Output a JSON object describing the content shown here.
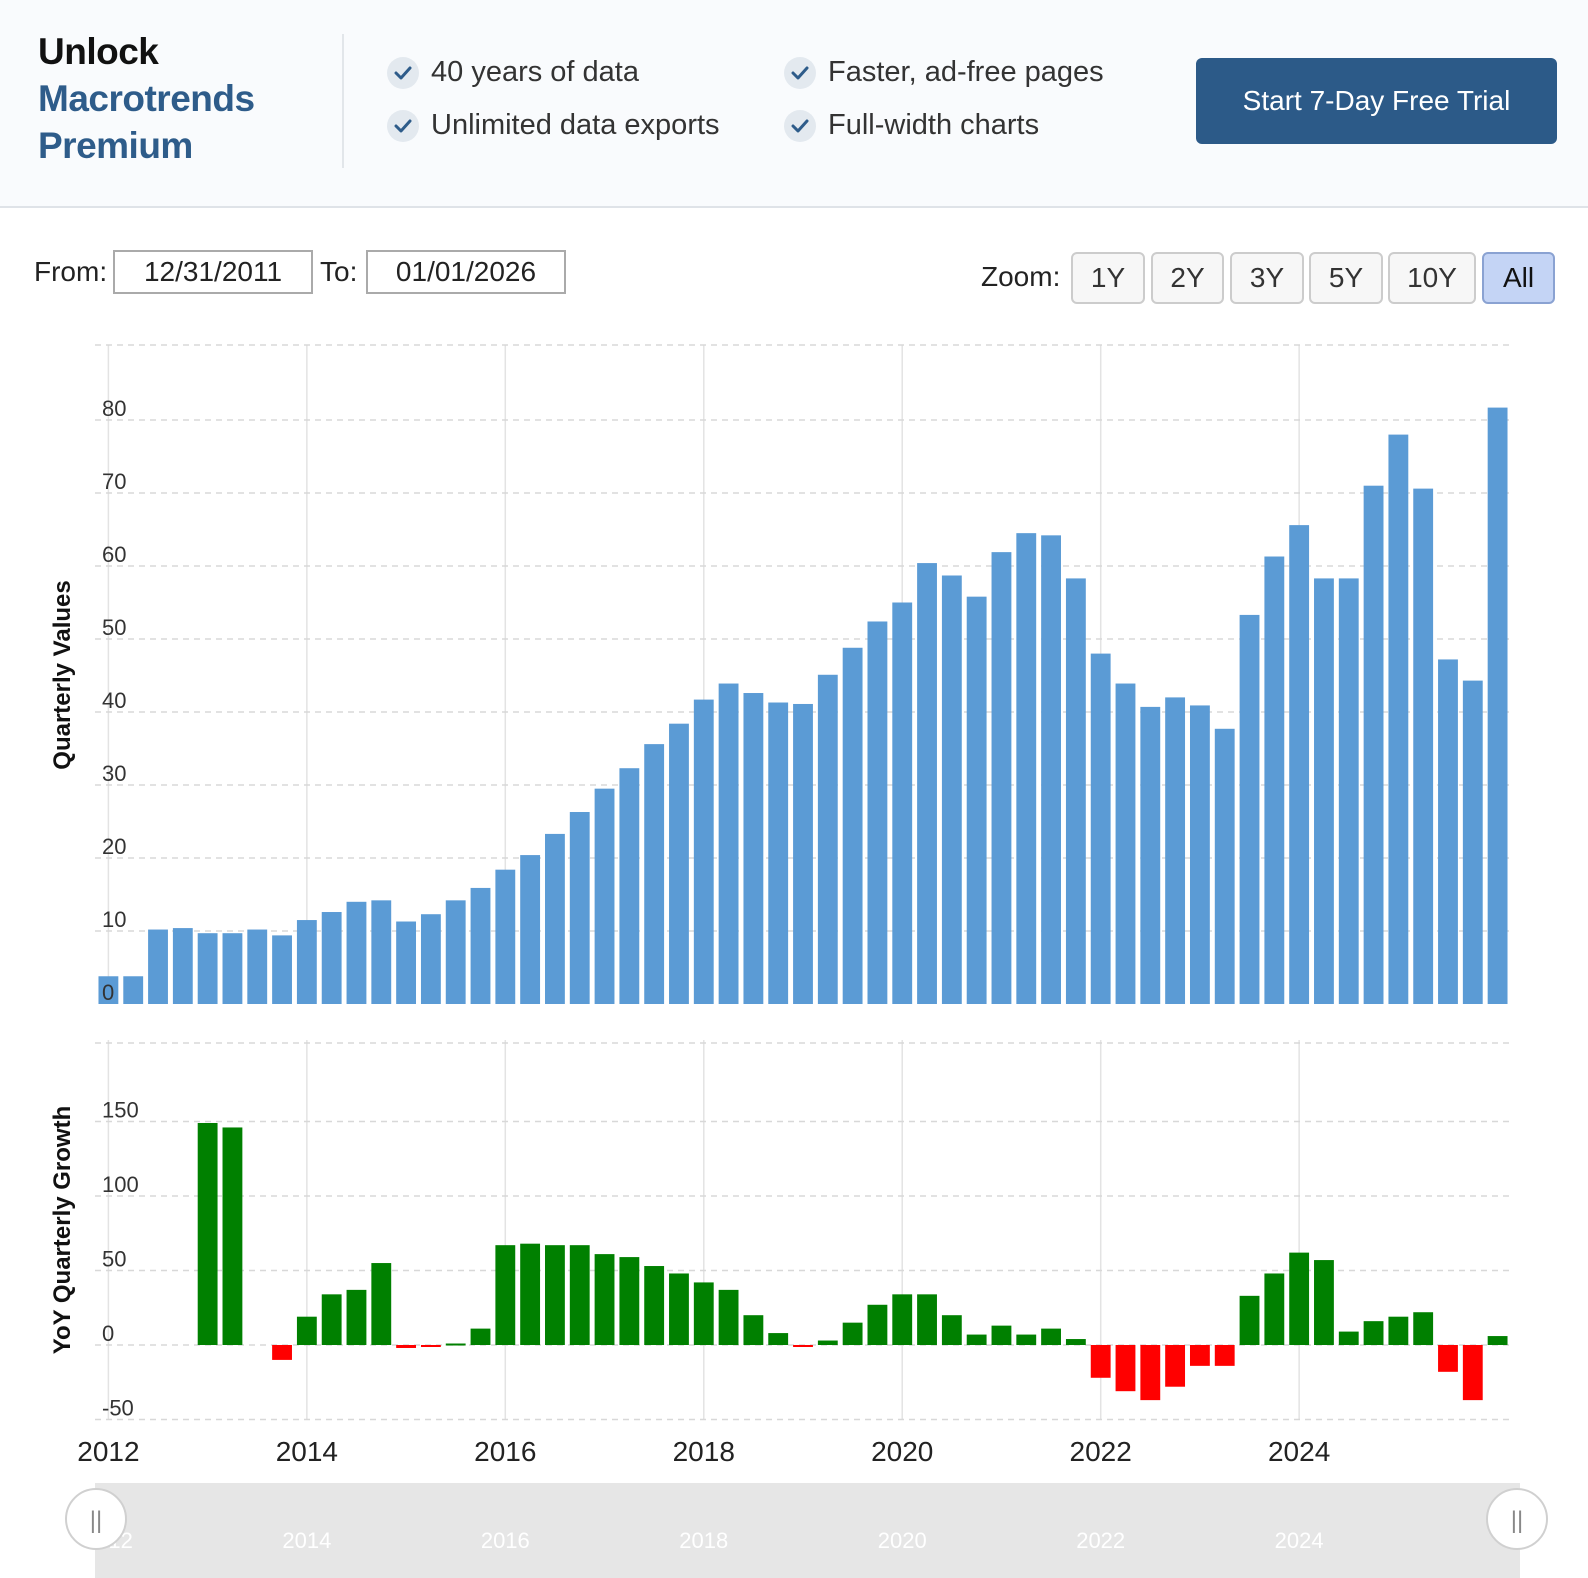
{
  "banner": {
    "title_line1": "Unlock",
    "title_line2": "Macrotrends",
    "title_line3": "Premium",
    "features": [
      "40 years of data",
      "Faster, ad-free pages",
      "Unlimited data exports",
      "Full-width charts"
    ],
    "cta_label": "Start 7-Day Free Trial",
    "check_icon": "check-icon"
  },
  "date_range": {
    "from_label": "From:",
    "from_value": "12/31/2011",
    "to_label": "To:",
    "to_value": "01/01/2026"
  },
  "zoom": {
    "label": "Zoom:",
    "options": [
      "1Y",
      "2Y",
      "3Y",
      "5Y",
      "10Y",
      "All"
    ],
    "selected": "All"
  },
  "colors": {
    "bar": "#5b9bd5",
    "positive": "#008000",
    "negative": "#ff0000",
    "accent": "#2c5a88"
  },
  "chart_data": [
    {
      "type": "bar",
      "ylabel": "Quarterly Values",
      "ylim": [
        0,
        90
      ],
      "yticks": [
        0,
        10,
        20,
        30,
        40,
        50,
        60,
        70,
        80
      ],
      "grid": true,
      "x_start": "2012-Q1",
      "x": [
        "2012-Q1",
        "2012-Q2",
        "2012-Q3",
        "2012-Q4",
        "2013-Q1",
        "2013-Q2",
        "2013-Q3",
        "2013-Q4",
        "2014-Q1",
        "2014-Q2",
        "2014-Q3",
        "2014-Q4",
        "2015-Q1",
        "2015-Q2",
        "2015-Q3",
        "2015-Q4",
        "2016-Q1",
        "2016-Q2",
        "2016-Q3",
        "2016-Q4",
        "2017-Q1",
        "2017-Q2",
        "2017-Q3",
        "2017-Q4",
        "2018-Q1",
        "2018-Q2",
        "2018-Q3",
        "2018-Q4",
        "2019-Q1",
        "2019-Q2",
        "2019-Q3",
        "2019-Q4",
        "2020-Q1",
        "2020-Q2",
        "2020-Q3",
        "2020-Q4",
        "2021-Q1",
        "2021-Q2",
        "2021-Q3",
        "2021-Q4",
        "2022-Q1",
        "2022-Q2",
        "2022-Q3",
        "2022-Q4",
        "2023-Q1",
        "2023-Q2",
        "2023-Q3",
        "2023-Q4",
        "2024-Q1",
        "2024-Q2",
        "2024-Q3",
        "2024-Q4",
        "2025-Q1",
        "2025-Q2",
        "2025-Q3",
        "2025-Q4",
        "2026-Q1"
      ],
      "values": [
        3.8,
        3.8,
        10.2,
        10.4,
        9.7,
        9.7,
        10.2,
        9.4,
        11.5,
        12.6,
        14.0,
        14.2,
        11.3,
        12.3,
        14.2,
        15.9,
        18.4,
        20.4,
        23.3,
        26.3,
        29.5,
        32.3,
        35.6,
        38.4,
        41.7,
        43.9,
        42.6,
        41.3,
        41.1,
        45.1,
        48.8,
        52.4,
        55.0,
        60.4,
        58.7,
        55.8,
        61.9,
        64.5,
        64.2,
        58.3,
        48.0,
        43.9,
        40.7,
        42.0,
        40.9,
        37.7,
        53.3,
        61.3,
        65.6,
        58.3,
        58.3,
        71.0,
        78.0,
        70.6,
        47.2,
        44.3,
        81.7
      ]
    },
    {
      "type": "bar",
      "ylabel": "YoY Quarterly Growth",
      "ylim": [
        -50,
        150
      ],
      "yticks": [
        -50,
        0,
        50,
        100,
        150
      ],
      "grid": true,
      "x_start": "2012-Q1",
      "xticks": [
        "2012",
        "2014",
        "2016",
        "2018",
        "2020",
        "2022",
        "2024"
      ],
      "values": [
        0,
        0,
        0,
        0,
        149,
        146,
        0,
        -10,
        19,
        34,
        37,
        55,
        -2,
        -1,
        1,
        11,
        67,
        68,
        67,
        67,
        61,
        59,
        53,
        48,
        42,
        37,
        20,
        8,
        -1,
        3,
        15,
        27,
        34,
        34,
        20,
        7,
        13,
        7,
        11,
        4,
        -22,
        -31,
        -37,
        -28,
        -14,
        -14,
        33,
        48,
        62,
        57,
        9,
        16,
        19,
        22,
        -18,
        -37,
        6
      ]
    }
  ],
  "navigator": {
    "xticks": [
      "2012",
      "2014",
      "2016",
      "2018",
      "2020",
      "2022",
      "2024"
    ],
    "handle_glyph": "||"
  }
}
